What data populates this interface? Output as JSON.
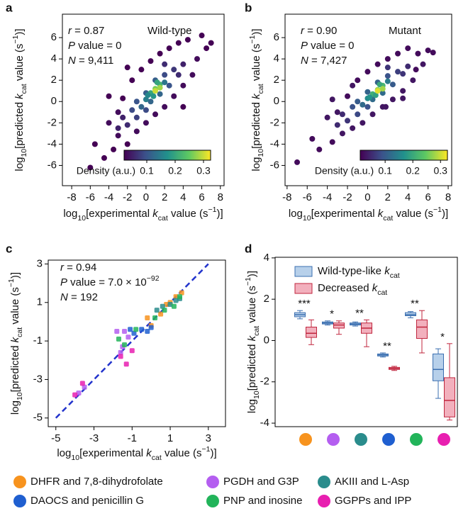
{
  "chart_data": [
    {
      "type": "density_scatter",
      "panel_label": "a",
      "xlabel": [
        "log",
        "10",
        "[experimental ",
        "k",
        "cat",
        " value (s",
        "−1",
        ")]"
      ],
      "ylabel": [
        "log",
        "10",
        "[predicted ",
        "k",
        "cat",
        " value (s",
        "−1",
        ")]"
      ],
      "annotations": [
        [
          "r",
          " = 0.87"
        ],
        [
          "P",
          " value = 0"
        ],
        [
          "N",
          " = 9,411"
        ]
      ],
      "label": "Wild-type",
      "xlim": [
        -9,
        8.4
      ],
      "ylim": [
        -7.9,
        8.2
      ],
      "xticks": [
        -8,
        -6,
        -4,
        -2,
        0,
        2,
        4,
        6,
        8
      ],
      "yticks": [
        -6,
        -4,
        -2,
        0,
        2,
        4,
        6
      ],
      "colormap": [
        "#440154",
        "#3b528b",
        "#21918c",
        "#5ec962",
        "#fde725"
      ],
      "clim": [
        0.02,
        0.325
      ],
      "cticks": [
        0.1,
        0.2,
        0.3
      ],
      "clabel": "Density (a.u.)",
      "x": [
        -6,
        -5.5,
        -4.5,
        -4,
        -3.5,
        -3,
        -3,
        -2.5,
        -2,
        -1.5,
        -1,
        -0.5,
        0,
        0.5,
        1,
        1.5,
        2,
        2.5,
        3,
        3.5,
        4,
        4.5,
        5,
        5.5,
        6,
        6.5,
        7,
        -4,
        4,
        -2,
        -2,
        -1.5,
        -1,
        -1,
        -0.5,
        0,
        0,
        0.5,
        1,
        1.5,
        2,
        2.5,
        3,
        3.5,
        -2.5,
        2,
        4,
        -3,
        0,
        0.5,
        1,
        1.5,
        0.8,
        1.2,
        2,
        0.2,
        1,
        1.5
      ],
      "y": [
        -6.2,
        -4,
        -5.3,
        -2,
        -4.5,
        -1,
        -3.2,
        0.3,
        -4,
        2,
        -2.8,
        3,
        -2,
        3.8,
        -1.2,
        4.5,
        -0.5,
        5,
        0.5,
        5.5,
        1.5,
        5.8,
        2.5,
        4,
        6.2,
        5,
        5.5,
        0.5,
        -0.5,
        3.2,
        -2.2,
        -0.8,
        -1.5,
        0,
        -0.5,
        0.8,
        -0.8,
        0,
        2,
        0.7,
        2.5,
        1.5,
        3,
        2.5,
        -1.5,
        3.5,
        3.5,
        -2.5,
        0.2,
        0.8,
        1.2,
        1.6,
        0.5,
        1.8,
        1.8,
        0.6,
        1,
        1.3
      ],
      "density": [
        0.02,
        0.02,
        0.02,
        0.03,
        0.02,
        0.03,
        0.03,
        0.02,
        0.02,
        0.02,
        0.03,
        0.02,
        0.03,
        0.02,
        0.03,
        0.02,
        0.03,
        0.02,
        0.03,
        0.02,
        0.03,
        0.02,
        0.03,
        0.03,
        0.02,
        0.02,
        0.02,
        0.02,
        0.02,
        0.02,
        0.06,
        0.09,
        0.08,
        0.1,
        0.12,
        0.11,
        0.09,
        0.12,
        0.11,
        0.12,
        0.09,
        0.1,
        0.07,
        0.06,
        0.05,
        0.06,
        0.05,
        0.05,
        0.15,
        0.2,
        0.26,
        0.22,
        0.18,
        0.2,
        0.14,
        0.16,
        0.3,
        0.28
      ]
    },
    {
      "type": "density_scatter",
      "panel_label": "b",
      "xlabel": [
        "log",
        "10",
        "[experimental ",
        "k",
        "cat",
        " value (s",
        "−1",
        ")]"
      ],
      "ylabel": [
        "log",
        "10",
        "[predicted ",
        "k",
        "cat",
        " value (s",
        "−1",
        ")]"
      ],
      "annotations": [
        [
          "r",
          " = 0.90"
        ],
        [
          "P",
          " value = 0"
        ],
        [
          "N",
          " = 7,427"
        ]
      ],
      "label": "Mutant",
      "xlim": [
        -8.2,
        8.35
      ],
      "ylim": [
        -7.9,
        8.2
      ],
      "xticks": [
        -8,
        -6,
        -4,
        -2,
        0,
        2,
        4,
        6,
        8
      ],
      "yticks": [
        -6,
        -4,
        -2,
        0,
        2,
        4,
        6
      ],
      "colormap": [
        "#440154",
        "#3b528b",
        "#21918c",
        "#5ec962",
        "#fde725"
      ],
      "clim": [
        0.01,
        0.325
      ],
      "cticks": [
        0.1,
        0.2,
        0.3
      ],
      "clabel": "Density (a.u.)",
      "x": [
        -7,
        -5.5,
        -4.8,
        -4,
        -3.5,
        -3,
        -2.5,
        -2,
        -1.5,
        -1,
        -0.5,
        0,
        0.5,
        1,
        1.5,
        2,
        2.5,
        3,
        3.5,
        4,
        4.5,
        5,
        5.5,
        6,
        6.5,
        -3.5,
        3.5,
        -1.5,
        1.8,
        4.8,
        -2,
        -1.5,
        -1,
        -1,
        -0.5,
        0,
        0,
        0.5,
        1,
        1.5,
        2,
        2.5,
        3,
        3.5,
        -2.5,
        2,
        4,
        -3,
        0,
        0.5,
        1,
        1.5,
        0.8,
        1.2,
        2,
        0.2,
        1,
        1.5
      ],
      "y": [
        -5.7,
        -3.5,
        -4.5,
        -1.5,
        -3.8,
        -1,
        -3,
        0.5,
        -2.5,
        2,
        -2,
        2.8,
        -1.2,
        3.5,
        -0.5,
        4,
        0.2,
        4.5,
        1,
        5,
        2,
        4.5,
        3.5,
        4.8,
        4.6,
        0.2,
        0.3,
        1.5,
        -0.5,
        3,
        -1.8,
        -0.5,
        -1.2,
        0,
        -0.3,
        0.9,
        -0.5,
        0.2,
        1.8,
        0.8,
        2.4,
        1.6,
        2.8,
        2.6,
        -1.2,
        3.2,
        3.3,
        -2.2,
        0.3,
        0.7,
        1.1,
        1.5,
        0.6,
        1.6,
        1.9,
        0.4,
        1,
        1.2
      ],
      "density": [
        0.02,
        0.02,
        0.02,
        0.03,
        0.02,
        0.03,
        0.03,
        0.02,
        0.03,
        0.02,
        0.03,
        0.02,
        0.03,
        0.02,
        0.03,
        0.02,
        0.03,
        0.02,
        0.03,
        0.02,
        0.03,
        0.02,
        0.03,
        0.02,
        0.02,
        0.03,
        0.03,
        0.03,
        0.03,
        0.02,
        0.06,
        0.09,
        0.08,
        0.1,
        0.12,
        0.11,
        0.09,
        0.12,
        0.11,
        0.12,
        0.09,
        0.1,
        0.07,
        0.06,
        0.05,
        0.06,
        0.05,
        0.05,
        0.16,
        0.21,
        0.27,
        0.22,
        0.19,
        0.2,
        0.14,
        0.17,
        0.31,
        0.28
      ]
    },
    {
      "type": "scatter",
      "panel_label": "c",
      "xlabel": [
        "log",
        "10",
        "[experimental ",
        "k",
        "cat",
        " value (s",
        "−1",
        ")]"
      ],
      "ylabel": [
        "log",
        "10",
        "[predicted ",
        "k",
        "cat",
        " value (s",
        "−1",
        ")]"
      ],
      "annotations": [
        [
          "r",
          " = 0.94"
        ],
        [
          "P",
          " value = 7.0 × 10",
          "−92"
        ],
        [
          "N",
          " = 192"
        ]
      ],
      "xlim": [
        -5.4,
        3.9
      ],
      "ylim": [
        -5.45,
        3.2
      ],
      "xticks": [
        -5,
        -3,
        -1,
        1,
        3
      ],
      "yticks": [
        -5,
        -3,
        -1,
        1,
        3
      ],
      "diagonal": {
        "x": [
          -5,
          3
        ],
        "y": [
          -5,
          3
        ],
        "color": "#2233cc"
      },
      "series": [
        {
          "name": "DHFR and 7,8-dihydrofolate",
          "color": "#f7931e",
          "x": [
            0.5,
            1,
            1.3,
            0.8,
            -0.2,
            1.6,
            0
          ],
          "y": [
            0.4,
            1,
            1.3,
            0.9,
            0.2,
            1.5,
            -0.2
          ]
        },
        {
          "name": "PGDH and G3P",
          "color": "#b45ef0",
          "x": [
            -1.8,
            -1.4,
            -1.2,
            -1.5,
            -3.8,
            -3.5,
            -1.6
          ],
          "y": [
            -0.5,
            -0.5,
            -0.8,
            -1.3,
            -3.7,
            -3.4,
            -1.6
          ]
        },
        {
          "name": "AKIII and L-Asp",
          "color": "#2a8c8c",
          "x": [
            0.6,
            1,
            1.3,
            1.5,
            0.3
          ],
          "y": [
            0.8,
            0.9,
            1.1,
            1.2,
            0.6
          ]
        },
        {
          "name": "DAOCS and penicillin G",
          "color": "#1f5fd0",
          "x": [
            -0.9,
            -0.5,
            -0.2,
            -1.1,
            0
          ],
          "y": [
            -0.6,
            -0.4,
            -0.5,
            -0.4,
            -0.3
          ]
        },
        {
          "name": "PNP and inosine",
          "color": "#22b45a",
          "x": [
            -1.7,
            -0.8,
            0.2,
            0.7,
            1.2,
            -1.4,
            1.5
          ],
          "y": [
            -0.9,
            -0.4,
            0.2,
            0.6,
            0.8,
            -1.2,
            1.3
          ]
        },
        {
          "name": "GGPPs and IPP",
          "color": "#e81fb0",
          "x": [
            -4,
            -3.6,
            -1.6,
            -1.3,
            -1
          ],
          "y": [
            -3.8,
            -3.2,
            -1.8,
            -2.2,
            -1.5
          ]
        }
      ]
    },
    {
      "type": "box",
      "panel_label": "d",
      "ylabel": [
        "log",
        "10",
        "[predicted ",
        "k",
        "cat",
        " value (s",
        "−1",
        ")]"
      ],
      "ylim": [
        -4.17,
        4.03
      ],
      "yticks": [
        -4,
        -2,
        0,
        2,
        4
      ],
      "categories": [
        null,
        null,
        null,
        null,
        null,
        null
      ],
      "category_colors": [
        "#f7931e",
        "#b45ef0",
        "#2a8c8c",
        "#1f5fd0",
        "#22b45a",
        "#e81fb0"
      ],
      "annotations": [
        "***",
        "*",
        "**",
        "**",
        "**",
        "*"
      ],
      "series": [
        {
          "name": [
            "Wild-type-like ",
            "k",
            "cat"
          ],
          "color": "#3b6fb0",
          "fill": "#b7d0ea",
          "whislo": [
            1.05,
            0.75,
            0.7,
            -0.8,
            1.1,
            -2.8
          ],
          "q1": [
            1.15,
            0.8,
            0.75,
            -0.75,
            1.2,
            -1.95
          ],
          "median": [
            1.25,
            0.85,
            0.8,
            -0.7,
            1.25,
            -1.4
          ],
          "q3": [
            1.35,
            0.9,
            0.85,
            -0.65,
            1.35,
            -0.65
          ],
          "whishi": [
            1.45,
            0.95,
            0.9,
            -0.6,
            1.4,
            -0.4
          ]
        },
        {
          "name": [
            "Decreased ",
            "k",
            "cat"
          ],
          "color": "#c0263e",
          "fill": "#f2b0bd",
          "whislo": [
            -0.2,
            0.3,
            -0.3,
            -1.45,
            -0.6,
            -3.85
          ],
          "q1": [
            0.15,
            0.6,
            0.35,
            -1.4,
            0.1,
            -3.7
          ],
          "median": [
            0.35,
            0.75,
            0.6,
            -1.35,
            0.65,
            -2.9
          ],
          "q3": [
            0.65,
            0.85,
            0.85,
            -1.3,
            1,
            -1.8
          ],
          "whishi": [
            1,
            0.95,
            1,
            -1.25,
            1.45,
            -0.15
          ]
        }
      ]
    }
  ]
}
